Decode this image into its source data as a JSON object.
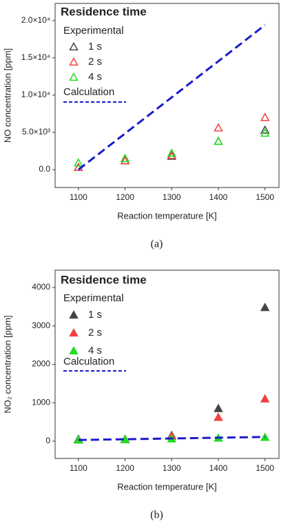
{
  "chart_data": [
    {
      "type": "scatter",
      "caption": "(a)",
      "legend_title": "Residence time",
      "legend_subtitle": "Experimental",
      "x_label": "Reaction temperature [K]",
      "y_label": "NO concentration [ppm]",
      "x": [
        1100,
        1200,
        1300,
        1400,
        1500
      ],
      "marker_fill": false,
      "xlim": [
        1050,
        1530
      ],
      "xticks": [
        1100,
        1200,
        1300,
        1400,
        1500
      ],
      "ylim": [
        -2400,
        22300
      ],
      "yticks": [
        {
          "value": 0,
          "label": "0.0"
        },
        {
          "value": 5000,
          "label": "5.0×10³"
        },
        {
          "value": 10000,
          "label": "1.0×10⁴"
        },
        {
          "value": 15000,
          "label": "1.5×10⁴"
        },
        {
          "value": 20000,
          "label": "2.0×10⁴"
        }
      ],
      "series": [
        {
          "name": "1 s",
          "color": "#444444",
          "values": [
            300,
            1200,
            1800,
            3800,
            5300
          ]
        },
        {
          "name": "2 s",
          "color": "#f04040",
          "values": [
            300,
            1200,
            1900,
            5600,
            7000
          ]
        },
        {
          "name": "4 s",
          "color": "#22dd22",
          "values": [
            900,
            1500,
            2200,
            3800,
            4900
          ]
        },
        {
          "name": "Calculation",
          "color": "#1a1acc",
          "x": [
            1100,
            1500
          ],
          "values": [
            0,
            19400
          ]
        }
      ]
    },
    {
      "type": "scatter",
      "caption": "(b)",
      "legend_title": "Residence time",
      "legend_subtitle": "Experimental",
      "x_label": "Reaction temperature [K]",
      "y_label": "NO₂ concentration [ppm]",
      "x": [
        1100,
        1200,
        1300,
        1400,
        1500
      ],
      "marker_fill": true,
      "xlim": [
        1050,
        1530
      ],
      "xticks": [
        1100,
        1200,
        1300,
        1400,
        1500
      ],
      "ylim": [
        -450,
        4450
      ],
      "yticks": [
        0,
        1000,
        2000,
        3000,
        4000
      ],
      "series": [
        {
          "name": "1 s",
          "color": "#444444",
          "values": [
            50,
            50,
            150,
            850,
            3480
          ]
        },
        {
          "name": "2 s",
          "color": "#f04040",
          "values": [
            30,
            40,
            130,
            620,
            1100
          ]
        },
        {
          "name": "4 s",
          "color": "#22dd22",
          "values": [
            30,
            40,
            60,
            80,
            100
          ]
        },
        {
          "name": "Calculation",
          "color": "#1a1acc",
          "x": [
            1100,
            1500
          ],
          "values": [
            30,
            110
          ]
        }
      ]
    }
  ]
}
